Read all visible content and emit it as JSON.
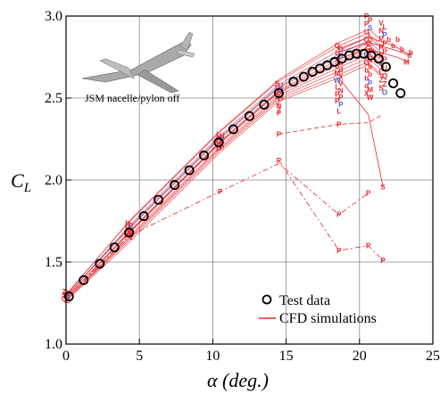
{
  "chart_data": {
    "type": "line",
    "xlabel": "α (deg.)",
    "ylabel_main": "C",
    "ylabel_sub": "L",
    "xlim": [
      0,
      25
    ],
    "ylim": [
      1.0,
      3.0
    ],
    "xticks": [
      0,
      5,
      10,
      15,
      20,
      25
    ],
    "yticks": [
      1.0,
      1.5,
      2.0,
      2.5,
      3.0
    ],
    "xtick_labels": [
      "0",
      "5",
      "10",
      "15",
      "20",
      "25"
    ],
    "ytick_labels": [
      "1.0",
      "1.5",
      "2.0",
      "2.5",
      "3.0"
    ],
    "grid": true,
    "legend_position": "bottom-right",
    "inset_label": "JSM nacelle/pylon off",
    "colors": {
      "test": "#000000",
      "cfd": "#e8262a",
      "cfd_alt": "#4a63d8"
    },
    "series": [
      {
        "name": "Test data",
        "marker": "circle",
        "x": [
          0.2,
          1.2,
          2.3,
          3.3,
          4.3,
          5.3,
          6.3,
          7.4,
          8.4,
          9.4,
          10.4,
          11.4,
          12.5,
          13.5,
          14.5,
          15.5,
          16.2,
          16.8,
          17.3,
          17.8,
          18.3,
          18.8,
          19.3,
          19.8,
          20.3,
          20.8,
          21.3,
          21.8,
          22.3,
          22.8
        ],
        "y": [
          1.29,
          1.39,
          1.49,
          1.59,
          1.68,
          1.78,
          1.88,
          1.97,
          2.06,
          2.15,
          2.23,
          2.31,
          2.39,
          2.46,
          2.53,
          2.6,
          2.63,
          2.66,
          2.68,
          2.7,
          2.72,
          2.74,
          2.76,
          2.77,
          2.77,
          2.76,
          2.74,
          2.69,
          2.59,
          2.53
        ]
      },
      {
        "name": "CFD simulations",
        "style": "band",
        "x": [
          0,
          4.3,
          10.5,
          14.5,
          18.6,
          20.6,
          21.6
        ],
        "y": [
          1.28,
          1.68,
          2.23,
          2.54,
          2.72,
          2.8,
          2.72
        ]
      }
    ],
    "cfd_cases": [
      {
        "id": "N",
        "x": [
          14.5
        ],
        "y": [
          2.41
        ]
      },
      {
        "id": "P",
        "x": [
          0,
          4.3,
          10.5,
          14.5,
          18.6,
          20.6
        ],
        "y": [
          1.28,
          1.66,
          1.93,
          2.1,
          1.79,
          1.92
        ]
      },
      {
        "id": "P2",
        "x": [
          14.5,
          18.6,
          20.6,
          21.6
        ],
        "y": [
          2.28,
          2.34,
          2.35,
          2.4
        ]
      },
      {
        "id": "P3",
        "x": [
          14.5,
          18.6,
          20.6,
          21.6
        ],
        "y": [
          2.12,
          1.57,
          1.6,
          1.51
        ]
      },
      {
        "id": "S",
        "x": [
          18.6,
          20.6,
          21.6
        ],
        "y": [
          2.62,
          2.4,
          1.96
        ]
      },
      {
        "id": "M",
        "x": [
          18.6,
          20.6,
          22.5,
          23.4
        ],
        "y": [
          2.74,
          2.8,
          2.75,
          2.72
        ]
      },
      {
        "id": "d",
        "x": [
          18.6,
          20.6,
          22.5,
          23.4
        ],
        "y": [
          2.78,
          2.84,
          2.79,
          2.76
        ]
      },
      {
        "id": "b",
        "x": [
          18.6,
          20.6,
          22.3,
          23.5
        ],
        "y": [
          2.8,
          2.87,
          2.82,
          2.76
        ]
      }
    ],
    "marker_letters": [
      "Z",
      "Z",
      "S",
      "O",
      "Q",
      "O",
      "b",
      "b",
      "b",
      "b",
      "b",
      "d",
      "M",
      "X",
      "W",
      "V",
      "L",
      "N",
      "P",
      "P",
      "P",
      "P",
      "P",
      "P",
      "P",
      "S",
      "U",
      "L",
      "Q"
    ],
    "legend": [
      {
        "label": "Test data",
        "symbol": "circle"
      },
      {
        "label": "CFD simulations",
        "symbol": "line"
      }
    ]
  }
}
